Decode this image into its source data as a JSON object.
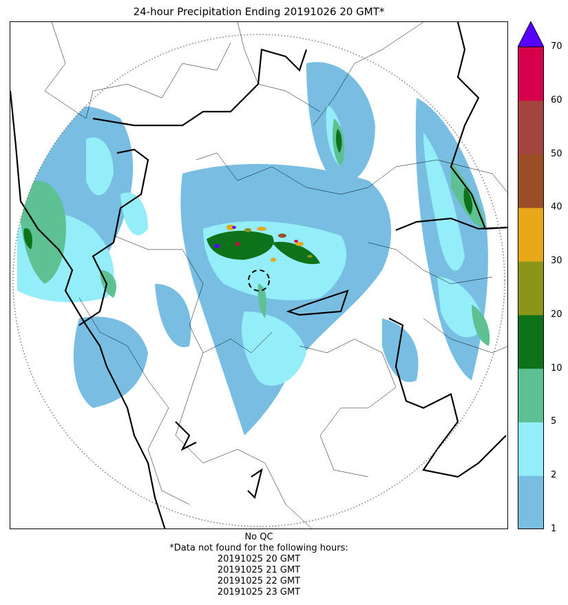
{
  "title": "24-hour Precipitation Ending 20191026 20 GMT*",
  "colorbar": {
    "levels": [
      1,
      2,
      5,
      10,
      20,
      30,
      40,
      50,
      60,
      70
    ],
    "colors": [
      "#78bee3",
      "#94eef9",
      "#5ec194",
      "#0d7219",
      "#8a9519",
      "#e7a91a",
      "#9b4d25",
      "#a4463f",
      "#d4004a"
    ],
    "extend_color": "#5500ff",
    "tick_labels": [
      "1",
      "2",
      "5",
      "10",
      "20",
      "30",
      "40",
      "50",
      "60",
      "70"
    ]
  },
  "footer": {
    "qc": "No QC",
    "note": "*Data not found for the following hours:",
    "missing_hours": [
      "20191025 20 GMT",
      "20191025 21 GMT",
      "20191025 22 GMT",
      "20191025 23 GMT"
    ]
  }
}
